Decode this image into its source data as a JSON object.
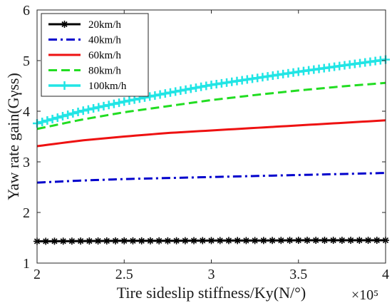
{
  "chart_data": {
    "type": "line",
    "title": "",
    "xlabel": "Tire sideslip stiffness/Ky(N/°)",
    "ylabel": "Yaw rate gain(Gγss)",
    "x_multiplier_label": "×10⁵",
    "xlim": [
      2,
      4
    ],
    "ylim": [
      1,
      6
    ],
    "xticks": [
      2,
      2.5,
      3,
      3.5,
      4
    ],
    "xtick_labels": [
      "2",
      "2.5",
      "3",
      "3.5",
      "4"
    ],
    "yticks": [
      1,
      2,
      3,
      4,
      5,
      6
    ],
    "ytick_labels": [
      "1",
      "2",
      "3",
      "4",
      "5",
      "6"
    ],
    "grid": false,
    "legend_position": "top-left",
    "x": [
      2.0,
      2.25,
      2.5,
      2.75,
      3.0,
      3.25,
      3.5,
      3.75,
      4.0
    ],
    "series": [
      {
        "name": "20km/h",
        "color": "#000000",
        "style": "solid",
        "marker": "asterisk",
        "values": [
          1.43,
          1.435,
          1.44,
          1.44,
          1.445,
          1.445,
          1.45,
          1.45,
          1.45
        ]
      },
      {
        "name": "40km/h",
        "color": "#0000cc",
        "style": "dashdot",
        "marker": "none",
        "values": [
          2.59,
          2.63,
          2.66,
          2.68,
          2.7,
          2.72,
          2.74,
          2.76,
          2.78
        ]
      },
      {
        "name": "60km/h",
        "color": "#ee1111",
        "style": "solid",
        "marker": "none",
        "values": [
          3.31,
          3.42,
          3.5,
          3.57,
          3.62,
          3.67,
          3.72,
          3.77,
          3.82
        ]
      },
      {
        "name": "80km/h",
        "color": "#22dd22",
        "style": "dashed",
        "marker": "none",
        "values": [
          3.65,
          3.83,
          3.98,
          4.1,
          4.22,
          4.32,
          4.41,
          4.49,
          4.56
        ]
      },
      {
        "name": "100km/h",
        "color": "#22e5e5",
        "style": "solid",
        "marker": "plus",
        "values": [
          3.76,
          4.0,
          4.19,
          4.36,
          4.52,
          4.65,
          4.78,
          4.9,
          5.02
        ]
      }
    ]
  }
}
